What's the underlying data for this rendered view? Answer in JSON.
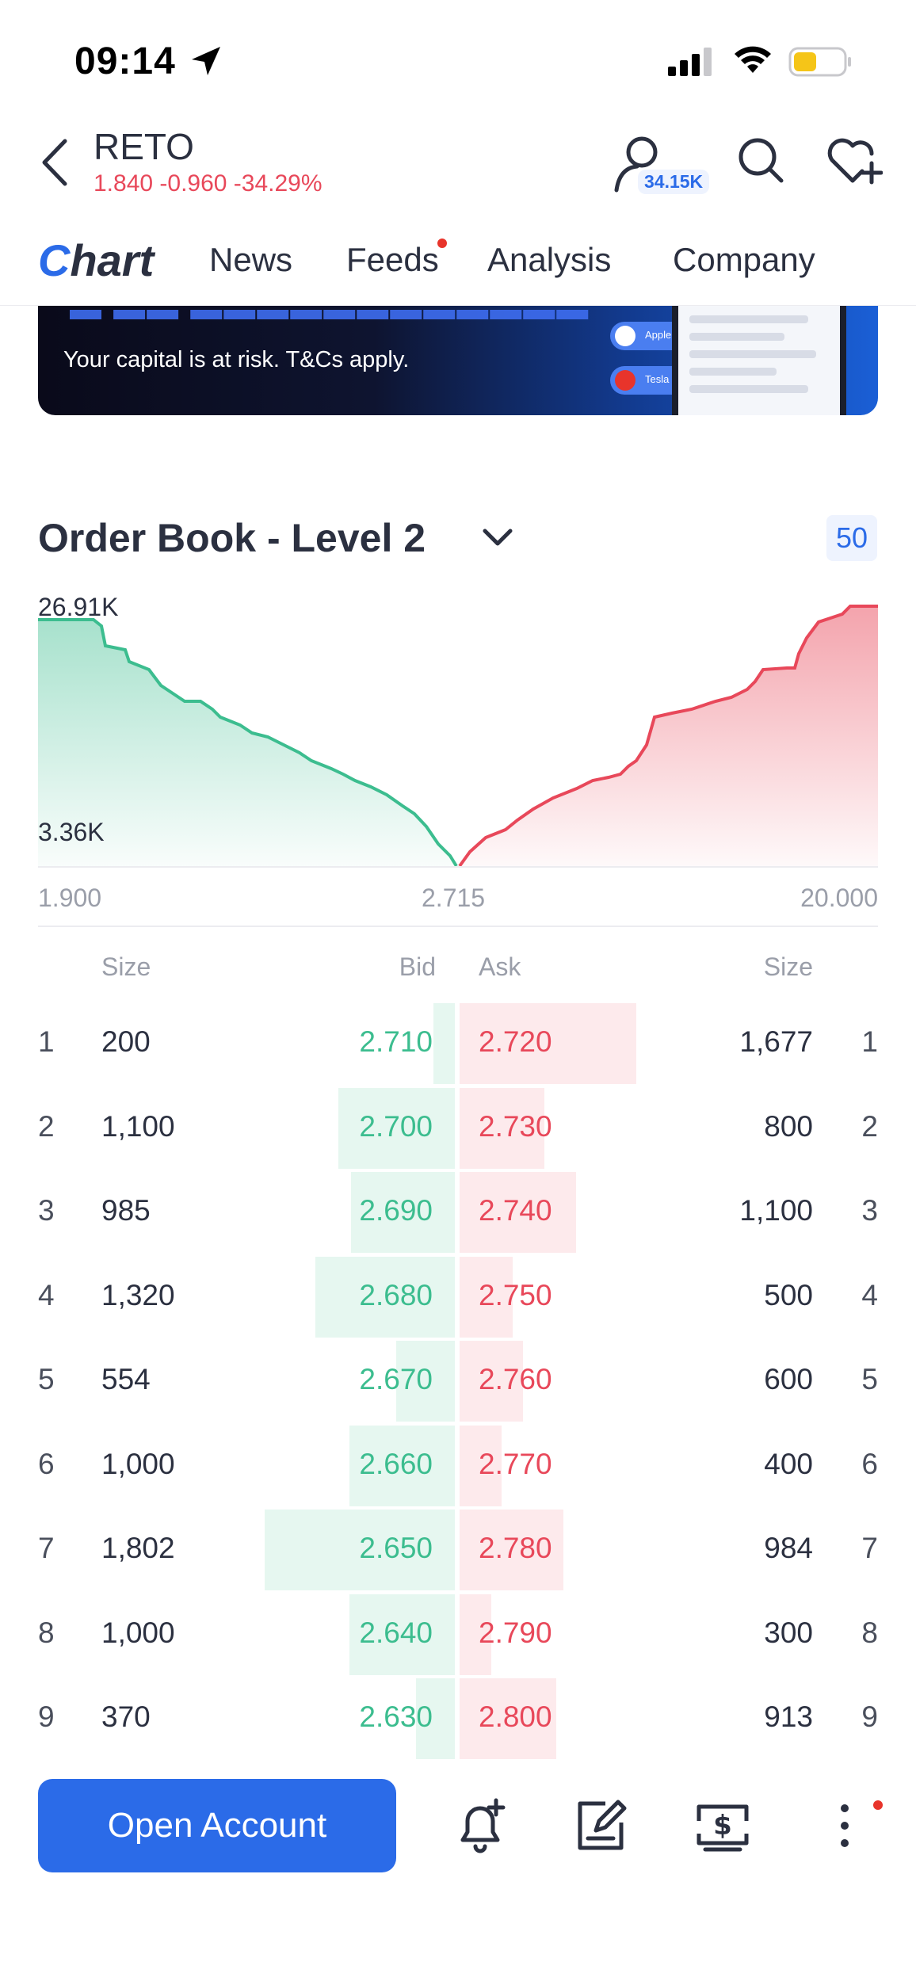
{
  "status_bar": {
    "time": "09:14"
  },
  "header": {
    "symbol": "RETO",
    "quote": "1.840 -0.960 -34.29%",
    "followers": "34.15K"
  },
  "tabs": [
    {
      "label": "Chart",
      "active": true
    },
    {
      "label": "News"
    },
    {
      "label": "Feeds",
      "has_dot": true
    },
    {
      "label": "Analysis"
    },
    {
      "label": "Company"
    }
  ],
  "ad": {
    "disclaimer": "Your capital is at risk. T&Cs apply.",
    "pills": [
      "Apple Inc",
      "Tesla Inc"
    ]
  },
  "order_book": {
    "title": "Order Book - Level 2",
    "depth": "50",
    "chart": {
      "y_max": "26.91K",
      "y_min": "3.36K",
      "x_left": "1.900",
      "x_mid": "2.715",
      "x_right": "20.000"
    },
    "columns": {
      "bid_size": "Size",
      "bid": "Bid",
      "ask": "Ask",
      "ask_size": "Size"
    },
    "rows": [
      {
        "idx": "1",
        "bid_size": "200",
        "bid": "2.710",
        "ask": "2.720",
        "ask_size": "1,677"
      },
      {
        "idx": "2",
        "bid_size": "1,100",
        "bid": "2.700",
        "ask": "2.730",
        "ask_size": "800"
      },
      {
        "idx": "3",
        "bid_size": "985",
        "bid": "2.690",
        "ask": "2.740",
        "ask_size": "1,100"
      },
      {
        "idx": "4",
        "bid_size": "1,320",
        "bid": "2.680",
        "ask": "2.750",
        "ask_size": "500"
      },
      {
        "idx": "5",
        "bid_size": "554",
        "bid": "2.670",
        "ask": "2.760",
        "ask_size": "600"
      },
      {
        "idx": "6",
        "bid_size": "1,000",
        "bid": "2.660",
        "ask": "2.770",
        "ask_size": "400"
      },
      {
        "idx": "7",
        "bid_size": "1,802",
        "bid": "2.650",
        "ask": "2.780",
        "ask_size": "984"
      },
      {
        "idx": "8",
        "bid_size": "1,000",
        "bid": "2.640",
        "ask": "2.790",
        "ask_size": "300"
      },
      {
        "idx": "9",
        "bid_size": "370",
        "bid": "2.630",
        "ask": "2.800",
        "ask_size": "913"
      }
    ]
  },
  "bottom_bar": {
    "open_account": "Open Account",
    "icons": [
      "add-alert-icon",
      "edit-note-icon",
      "trade-icon",
      "more-icon"
    ]
  },
  "colors": {
    "accent": "#2b6be8",
    "bid": "#3cbd8f",
    "ask": "#e8485a",
    "text": "#2b3040",
    "muted": "#9a9ea9"
  }
}
